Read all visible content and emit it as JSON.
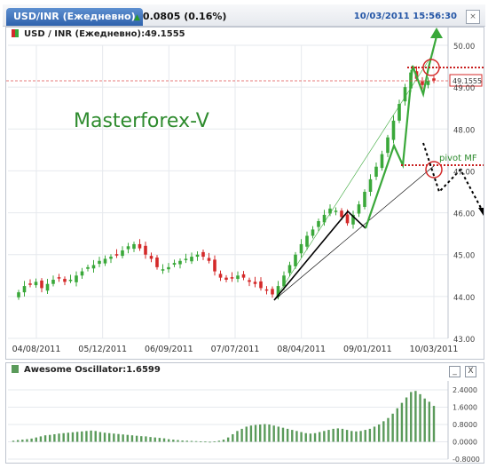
{
  "window": {
    "tab_label": "USD/INR (Ежедневно)",
    "change_text": "0.0805 (0.16%)",
    "timestamp": "10/03/2011 15:56:30",
    "close_icon": "close-icon"
  },
  "main_panel": {
    "legend": "USD / INR (Ежедневно):49.1555",
    "watermark": "Masterforex-V",
    "price_tag": "49.1555",
    "pivot_label": "pivot MF"
  },
  "osc_panel": {
    "legend": "Awesome Oscillator:1.6599",
    "minimize_label": "_",
    "close_label": "X"
  },
  "colors": {
    "up": "#3aa83a",
    "down": "#d42a2a",
    "osc": "#5a9a5a",
    "accent": "#3b7fd0"
  },
  "chart_data": [
    {
      "type": "candlestick",
      "series_name": "USD / INR",
      "ylim": [
        43.0,
        50.0
      ],
      "y_ticks": [
        "50.00",
        "49.00",
        "48.00",
        "47.00",
        "46.00",
        "45.00",
        "44.00",
        "43.00"
      ],
      "x_ticks": [
        "04/08/2011",
        "05/12/2011",
        "06/09/2011",
        "07/07/2011",
        "08/04/2011",
        "09/01/2011",
        "10/03/2011"
      ],
      "last_value": 49.1555,
      "closes": [
        44.1,
        44.25,
        44.3,
        44.35,
        44.2,
        44.3,
        44.4,
        44.45,
        44.35,
        44.4,
        44.5,
        44.6,
        44.7,
        44.75,
        44.85,
        44.9,
        44.95,
        45.0,
        45.1,
        45.2,
        45.25,
        45.15,
        45.0,
        44.9,
        44.7,
        44.65,
        44.7,
        44.8,
        44.85,
        44.9,
        44.95,
        45.0,
        44.95,
        44.85,
        44.6,
        44.45,
        44.4,
        44.45,
        44.5,
        44.45,
        44.35,
        44.3,
        44.2,
        44.15,
        44.05,
        44.25,
        44.5,
        44.75,
        45.0,
        45.25,
        45.45,
        45.6,
        45.8,
        45.95,
        46.1,
        46.05,
        45.9,
        45.75,
        45.95,
        46.2,
        46.5,
        46.8,
        47.1,
        47.4,
        47.8,
        48.2,
        48.6,
        49.0,
        49.35,
        49.2,
        49.05,
        49.15,
        49.1555
      ]
    },
    {
      "type": "bar",
      "series_name": "Awesome Oscillator",
      "ylim": [
        -0.8,
        2.4
      ],
      "y_ticks": [
        "2.4000",
        "1.6000",
        "0.8000",
        "0.0000",
        "-0.8000"
      ],
      "last_value": 1.6599,
      "values": [
        0.05,
        0.08,
        0.1,
        0.12,
        0.15,
        0.2,
        0.25,
        0.3,
        0.32,
        0.35,
        0.38,
        0.4,
        0.42,
        0.44,
        0.46,
        0.48,
        0.5,
        0.52,
        0.5,
        0.45,
        0.42,
        0.4,
        0.38,
        0.36,
        0.34,
        0.32,
        0.3,
        0.28,
        0.26,
        0.25,
        0.22,
        0.2,
        0.18,
        0.16,
        0.12,
        0.1,
        0.08,
        0.06,
        0.05,
        0.04,
        0.03,
        0.02,
        0.01,
        0.0,
        0.02,
        0.05,
        0.1,
        0.2,
        0.35,
        0.5,
        0.6,
        0.7,
        0.75,
        0.78,
        0.8,
        0.82,
        0.8,
        0.75,
        0.7,
        0.65,
        0.6,
        0.55,
        0.5,
        0.45,
        0.4,
        0.38,
        0.4,
        0.45,
        0.5,
        0.55,
        0.6,
        0.62,
        0.6,
        0.55,
        0.5,
        0.48,
        0.5,
        0.55,
        0.6,
        0.7,
        0.8,
        0.95,
        1.1,
        1.3,
        1.55,
        1.8,
        2.05,
        2.3,
        2.35,
        2.2,
        2.0,
        1.85,
        1.6599
      ]
    }
  ]
}
